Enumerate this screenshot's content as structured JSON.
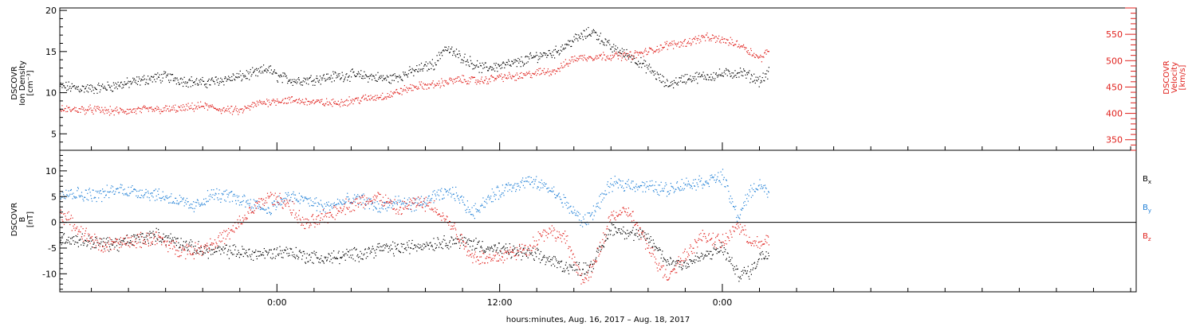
{
  "x_axis": {
    "label": "hours:minutes, Aug. 16, 2017 – Aug. 18, 2017",
    "range_hours": [
      -11.7,
      46.3
    ],
    "major_ticks": [
      {
        "hour": 0,
        "label": "0:00"
      },
      {
        "hour": 12,
        "label": "12:00"
      },
      {
        "hour": 24,
        "label": "0:00"
      }
    ],
    "minor_step_hours": 2
  },
  "chart_data": [
    {
      "type": "scatter",
      "panel": "top",
      "ylabel_lines": [
        "DSCOVR",
        "Ion Density",
        "[cm⁻³]"
      ],
      "ylim": [
        3,
        20.3
      ],
      "yticks": [
        5,
        10,
        15,
        20
      ],
      "y2label_lines": [
        "DSCOVR",
        "Velocity",
        "[km/s]"
      ],
      "y2lim": [
        330,
        600
      ],
      "y2ticks": [
        350,
        400,
        450,
        500,
        550
      ],
      "series": [
        {
          "color": "#000000",
          "axis": "left",
          "samples": [
            [
              -11.7,
              10.8
            ],
            [
              -10,
              10.5
            ],
            [
              -9,
              10.8
            ],
            [
              -8,
              11.2
            ],
            [
              -7,
              11.7
            ],
            [
              -6,
              12.0
            ],
            [
              -5,
              11.5
            ],
            [
              -4,
              11.2
            ],
            [
              -3,
              11.6
            ],
            [
              -2,
              12.0
            ],
            [
              -1,
              12.5
            ],
            [
              -0.5,
              13.0
            ],
            [
              0,
              12.0
            ],
            [
              1,
              11.5
            ],
            [
              2,
              11.7
            ],
            [
              3,
              12.0
            ],
            [
              4,
              12.2
            ],
            [
              5,
              12.0
            ],
            [
              6,
              11.7
            ],
            [
              6.8,
              12.2
            ],
            [
              7.5,
              12.8
            ],
            [
              8.5,
              13.6
            ],
            [
              9,
              15.5
            ],
            [
              10,
              14.3
            ],
            [
              11,
              13.0
            ],
            [
              12,
              13.3
            ],
            [
              13,
              13.7
            ],
            [
              14,
              14.5
            ],
            [
              15,
              15.0
            ],
            [
              16,
              16.5
            ],
            [
              17,
              17.5
            ],
            [
              18,
              15.5
            ],
            [
              19,
              14.5
            ],
            [
              20,
              13.0
            ],
            [
              21,
              11.0
            ],
            [
              22,
              11.8
            ],
            [
              23,
              12.0
            ],
            [
              24,
              12.3
            ],
            [
              25,
              12.5
            ],
            [
              26,
              11.5
            ],
            [
              26.5,
              12.5
            ]
          ]
        },
        {
          "color": "#e0201c",
          "axis": "right",
          "samples": [
            [
              -11.7,
              408
            ],
            [
              -10,
              408
            ],
            [
              -9,
              405
            ],
            [
              -8,
              405
            ],
            [
              -7,
              408
            ],
            [
              -6,
              408
            ],
            [
              -5,
              410
            ],
            [
              -4,
              415
            ],
            [
              -3,
              408
            ],
            [
              -2,
              405
            ],
            [
              -1,
              420
            ],
            [
              0,
              425
            ],
            [
              1,
              425
            ],
            [
              2,
              422
            ],
            [
              3,
              420
            ],
            [
              4,
              425
            ],
            [
              5,
              430
            ],
            [
              6,
              435
            ],
            [
              6.8,
              445
            ],
            [
              7.5,
              452
            ],
            [
              8.5,
              455
            ],
            [
              9,
              460
            ],
            [
              10,
              465
            ],
            [
              11,
              462
            ],
            [
              12,
              470
            ],
            [
              13,
              470
            ],
            [
              14,
              478
            ],
            [
              15,
              482
            ],
            [
              16,
              505
            ],
            [
              17,
              508
            ],
            [
              18,
              510
            ],
            [
              19,
              510
            ],
            [
              20,
              518
            ],
            [
              21,
              530
            ],
            [
              22,
              535
            ],
            [
              23,
              545
            ],
            [
              24,
              540
            ],
            [
              25,
              530
            ],
            [
              26,
              505
            ],
            [
              26.5,
              520
            ]
          ]
        }
      ]
    },
    {
      "type": "scatter",
      "panel": "bottom",
      "ylabel_lines": [
        "DSCOVR",
        "B",
        "[nT]"
      ],
      "ylim": [
        -13.5,
        14
      ],
      "yticks": [
        -10,
        -5,
        0,
        5,
        10
      ],
      "legend_placement": "right",
      "legend": [
        {
          "label": "B",
          "sub": "x",
          "color": "#000000"
        },
        {
          "label": "B",
          "sub": "y",
          "color": "#1f7fd6"
        },
        {
          "label": "B",
          "sub": "z",
          "color": "#e0201c"
        }
      ],
      "series": [
        {
          "color": "#000000",
          "samples": [
            [
              -11.7,
              -3.0
            ],
            [
              -10.5,
              -3.5
            ],
            [
              -9.5,
              -4.0
            ],
            [
              -8.5,
              -4.2
            ],
            [
              -7.5,
              -3.0
            ],
            [
              -6.5,
              -2.5
            ],
            [
              -5.5,
              -3.5
            ],
            [
              -4.5,
              -5.0
            ],
            [
              -3.5,
              -5.5
            ],
            [
              -2.5,
              -5.5
            ],
            [
              -1.5,
              -6.0
            ],
            [
              -0.5,
              -6.0
            ],
            [
              0.5,
              -5.5
            ],
            [
              1.5,
              -6.5
            ],
            [
              2.5,
              -7.0
            ],
            [
              3.5,
              -6.5
            ],
            [
              4.5,
              -6.0
            ],
            [
              5.5,
              -5.0
            ],
            [
              6.5,
              -5.0
            ],
            [
              7.5,
              -4.5
            ],
            [
              8.5,
              -4.0
            ],
            [
              9.5,
              -3.5
            ],
            [
              10.5,
              -4.0
            ],
            [
              11.5,
              -5.0
            ],
            [
              12.5,
              -5.5
            ],
            [
              13.5,
              -6.0
            ],
            [
              14.5,
              -7.0
            ],
            [
              15.5,
              -8.5
            ],
            [
              16.5,
              -9.0
            ],
            [
              17.0,
              -8.0
            ],
            [
              18.0,
              -1.0
            ],
            [
              19.0,
              -2.0
            ],
            [
              20.0,
              -3.0
            ],
            [
              21.0,
              -7.5
            ],
            [
              22.0,
              -8.0
            ],
            [
              23.0,
              -6.5
            ],
            [
              24.0,
              -5.0
            ],
            [
              24.8,
              -10.0
            ],
            [
              25.5,
              -9.5
            ],
            [
              26.0,
              -6.5
            ],
            [
              26.5,
              -6.0
            ]
          ]
        },
        {
          "color": "#1f7fd6",
          "samples": [
            [
              -11.7,
              6.0
            ],
            [
              -10.5,
              5.5
            ],
            [
              -9.5,
              5.5
            ],
            [
              -8.5,
              6.5
            ],
            [
              -7.5,
              6.0
            ],
            [
              -6.5,
              5.5
            ],
            [
              -5.5,
              4.5
            ],
            [
              -4.5,
              3.0
            ],
            [
              -3.5,
              5.5
            ],
            [
              -2.5,
              5.0
            ],
            [
              -1.5,
              4.0
            ],
            [
              -0.5,
              2.5
            ],
            [
              0.5,
              5.0
            ],
            [
              1.5,
              4.5
            ],
            [
              2.5,
              3.0
            ],
            [
              3.5,
              4.0
            ],
            [
              4.5,
              4.5
            ],
            [
              5.5,
              3.0
            ],
            [
              6.5,
              4.0
            ],
            [
              7.5,
              3.5
            ],
            [
              8.5,
              5.0
            ],
            [
              9.5,
              6.0
            ],
            [
              10.5,
              2.0
            ],
            [
              11.5,
              5.0
            ],
            [
              12.5,
              7.0
            ],
            [
              13.5,
              8.0
            ],
            [
              14.5,
              7.0
            ],
            [
              15.5,
              4.0
            ],
            [
              16.5,
              0.0
            ],
            [
              17.0,
              2.0
            ],
            [
              18.0,
              7.5
            ],
            [
              19.0,
              7.5
            ],
            [
              20.0,
              7.0
            ],
            [
              21.0,
              6.5
            ],
            [
              22.0,
              7.5
            ],
            [
              23.0,
              8.0
            ],
            [
              24.0,
              9.0
            ],
            [
              24.8,
              1.0
            ],
            [
              25.5,
              6.0
            ],
            [
              26.0,
              7.5
            ],
            [
              26.5,
              5.5
            ]
          ]
        },
        {
          "color": "#e0201c",
          "samples": [
            [
              -11.7,
              2.0
            ],
            [
              -10.5,
              -2.0
            ],
            [
              -9.5,
              -4.5
            ],
            [
              -8.5,
              -4.0
            ],
            [
              -7.5,
              -3.5
            ],
            [
              -6.5,
              -3.0
            ],
            [
              -5.5,
              -5.0
            ],
            [
              -4.5,
              -5.5
            ],
            [
              -3.5,
              -4.0
            ],
            [
              -2.5,
              -2.0
            ],
            [
              -1.5,
              2.0
            ],
            [
              -0.5,
              5.0
            ],
            [
              0.5,
              4.0
            ],
            [
              1.5,
              -0.5
            ],
            [
              2.5,
              1.0
            ],
            [
              3.5,
              3.0
            ],
            [
              4.5,
              4.0
            ],
            [
              5.5,
              5.0
            ],
            [
              6.5,
              2.5
            ],
            [
              7.5,
              4.0
            ],
            [
              8.5,
              3.0
            ],
            [
              9.5,
              -1.0
            ],
            [
              10.5,
              -6.5
            ],
            [
              11.5,
              -7.0
            ],
            [
              12.5,
              -6.0
            ],
            [
              13.5,
              -5.0
            ],
            [
              14.5,
              -1.5
            ],
            [
              15.5,
              -3.0
            ],
            [
              16.5,
              -11.5
            ],
            [
              17.0,
              -9.0
            ],
            [
              18.0,
              1.5
            ],
            [
              19.0,
              2.0
            ],
            [
              20.0,
              -5.0
            ],
            [
              21.0,
              -10.5
            ],
            [
              22.0,
              -6.0
            ],
            [
              23.0,
              -2.5
            ],
            [
              24.0,
              -4.0
            ],
            [
              24.8,
              -0.5
            ],
            [
              25.5,
              -3.5
            ],
            [
              26.0,
              -4.5
            ],
            [
              26.5,
              -3.0
            ]
          ]
        }
      ]
    }
  ]
}
